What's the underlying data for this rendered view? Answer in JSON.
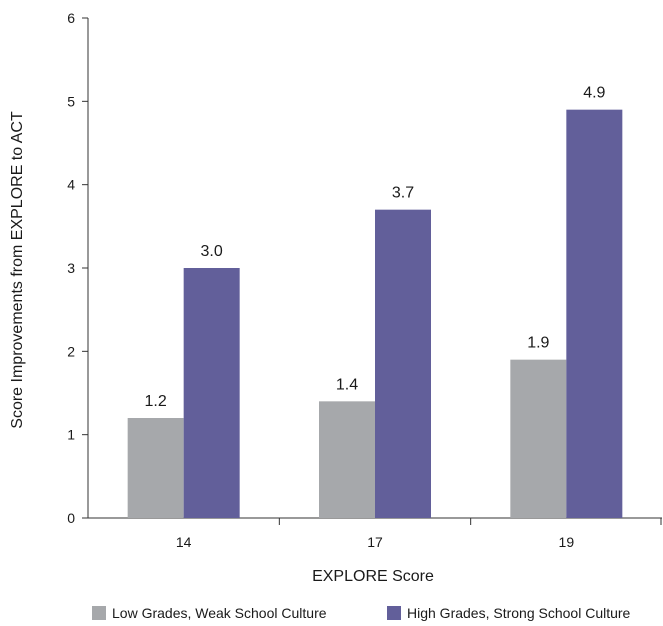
{
  "chart_data": {
    "type": "bar",
    "categories": [
      "14",
      "17",
      "19"
    ],
    "series": [
      {
        "name": "Low Grades, Weak School Culture",
        "values": [
          1.2,
          1.4,
          1.9
        ],
        "color": "#a6a8ab"
      },
      {
        "name": "High Grades, Strong School Culture",
        "values": [
          3.0,
          3.7,
          4.9
        ],
        "color": "#625f9a"
      }
    ],
    "data_labels": [
      [
        "1.2",
        "1.4",
        "1.9"
      ],
      [
        "3.0",
        "3.7",
        "4.9"
      ]
    ],
    "xlabel": "EXPLORE Score",
    "ylabel": "Score Improvements from EXPLORE to ACT",
    "ylim": [
      0,
      6
    ],
    "yticks": [
      "0",
      "1",
      "2",
      "3",
      "4",
      "5",
      "6"
    ],
    "grid": false,
    "legend_position": "bottom"
  }
}
